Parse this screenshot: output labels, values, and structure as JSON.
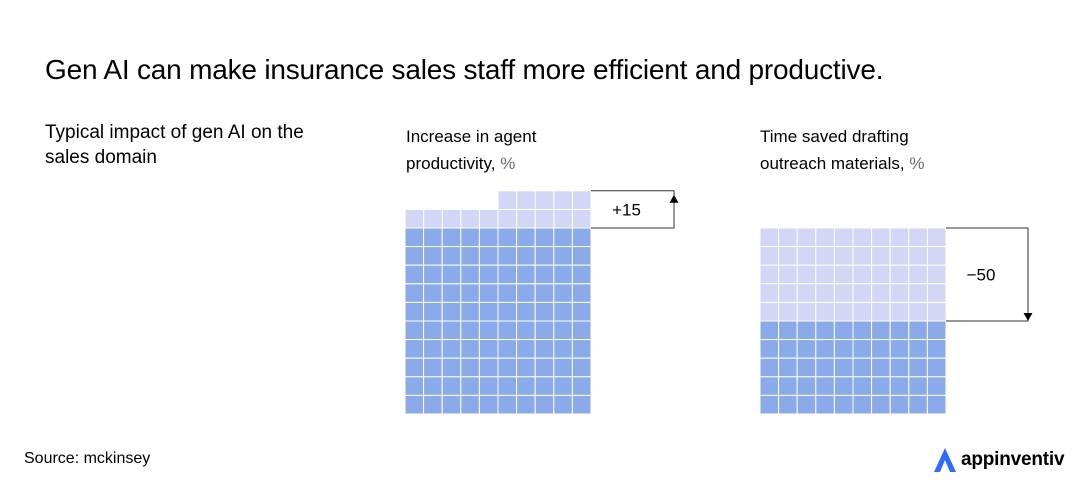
{
  "title": "Gen AI can make insurance sales staff more efficient and productive.",
  "subtitle": "Typical impact of gen AI on the sales domain",
  "source": "Source: mckinsey",
  "brand": {
    "name": "appinventiv",
    "color": "#2f6bff"
  },
  "colors": {
    "base": "#8aaaea",
    "change": "#d3d7f5",
    "grid_line": "#ffffff"
  },
  "chart_data": [
    {
      "type": "waffle",
      "title_lines": [
        "Increase in agent",
        "productivity,"
      ],
      "unit": "%",
      "base_value": 100,
      "change_value": 15,
      "change_label": "+15",
      "direction": "up",
      "grid_columns": 10
    },
    {
      "type": "waffle",
      "title_lines": [
        "Time saved drafting",
        "outreach materials,"
      ],
      "unit": "%",
      "base_value": 100,
      "change_value": -50,
      "change_label": "−50",
      "direction": "down",
      "grid_columns": 10
    }
  ]
}
